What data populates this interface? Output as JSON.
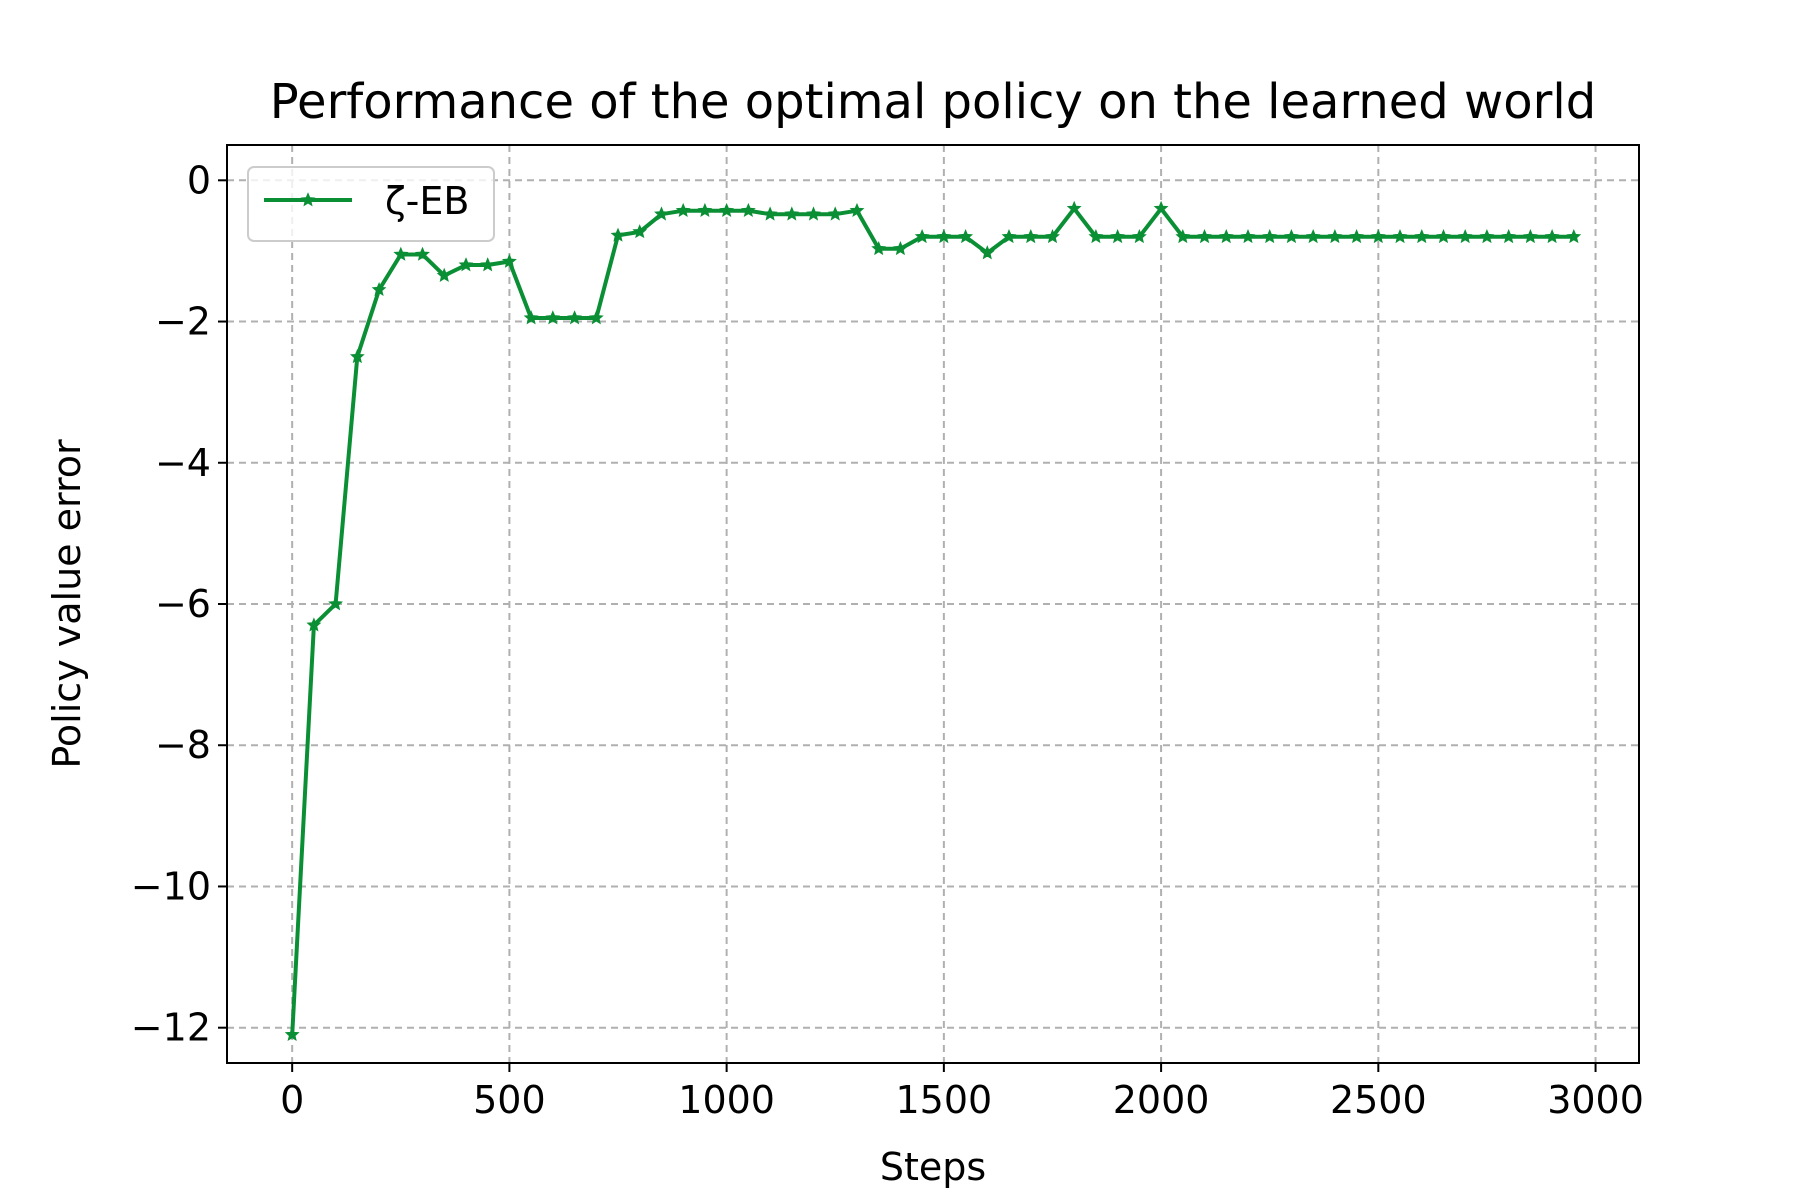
{
  "chart_data": {
    "type": "line",
    "title": "Performance of the optimal policy on the learned world",
    "xlabel": "Steps",
    "ylabel": "Policy value error",
    "xlim": [
      -150,
      3100
    ],
    "ylim": [
      -12.5,
      0.5
    ],
    "xticks": [
      0,
      500,
      1000,
      1500,
      2000,
      2500,
      3000
    ],
    "xtick_labels": [
      "0",
      "500",
      "1000",
      "1500",
      "2000",
      "2500",
      "3000"
    ],
    "yticks": [
      0,
      -2,
      -4,
      -6,
      -8,
      -10,
      -12
    ],
    "ytick_labels": [
      "0",
      "−2",
      "−4",
      "−6",
      "−8",
      "−10",
      "−12"
    ],
    "grid": true,
    "legend_position": "top-left",
    "series": [
      {
        "name": "ζ-EB",
        "color": "#0a8f35",
        "marker": "star",
        "x": [
          0,
          50,
          100,
          150,
          200,
          250,
          300,
          350,
          400,
          450,
          500,
          550,
          600,
          650,
          700,
          750,
          800,
          850,
          900,
          950,
          1000,
          1050,
          1100,
          1150,
          1200,
          1250,
          1300,
          1350,
          1400,
          1450,
          1500,
          1550,
          1600,
          1650,
          1700,
          1750,
          1800,
          1850,
          1900,
          1950,
          2000,
          2050,
          2100,
          2150,
          2200,
          2250,
          2300,
          2350,
          2400,
          2450,
          2500,
          2550,
          2600,
          2650,
          2700,
          2750,
          2800,
          2850,
          2900,
          2950
        ],
        "y": [
          -12.1,
          -6.3,
          -6.0,
          -2.5,
          -1.55,
          -1.05,
          -1.05,
          -1.35,
          -1.2,
          -1.2,
          -1.15,
          -1.95,
          -1.95,
          -1.95,
          -1.95,
          -0.78,
          -0.73,
          -0.48,
          -0.43,
          -0.43,
          -0.43,
          -0.43,
          -0.48,
          -0.48,
          -0.48,
          -0.48,
          -0.43,
          -0.97,
          -0.97,
          -0.8,
          -0.8,
          -0.8,
          -1.03,
          -0.8,
          -0.8,
          -0.8,
          -0.4,
          -0.8,
          -0.8,
          -0.8,
          -0.4,
          -0.8,
          -0.8,
          -0.8,
          -0.8,
          -0.8,
          -0.8,
          -0.8,
          -0.8,
          -0.8,
          -0.8,
          -0.8,
          -0.8,
          -0.8,
          -0.8,
          -0.8,
          -0.8,
          -0.8,
          -0.8,
          -0.8
        ]
      }
    ]
  }
}
